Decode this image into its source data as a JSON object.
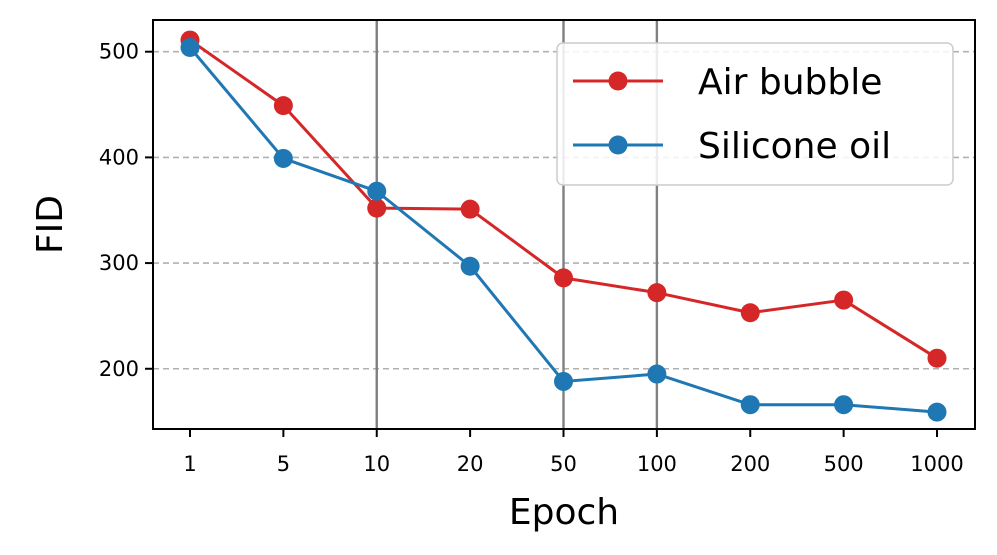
{
  "chart_data": {
    "type": "line",
    "categories": [
      "1",
      "5",
      "10",
      "20",
      "50",
      "100",
      "200",
      "500",
      "1000"
    ],
    "xlabel": "Epoch",
    "ylabel": "FID",
    "ylim": [
      143,
      530
    ],
    "yticks": [
      200,
      300,
      400,
      500
    ],
    "grid": "horizontal dashed",
    "vlines_at": [
      "10",
      "50",
      "100"
    ],
    "legend_position": "upper-right",
    "series": [
      {
        "name": "Air bubble",
        "color": "#d62728",
        "values": [
          511,
          449,
          352,
          351,
          286,
          272,
          253,
          265,
          210
        ]
      },
      {
        "name": "Silicone oil",
        "color": "#1f77b4",
        "values": [
          504,
          399,
          368,
          297,
          188,
          195,
          166,
          166,
          159
        ]
      }
    ]
  }
}
